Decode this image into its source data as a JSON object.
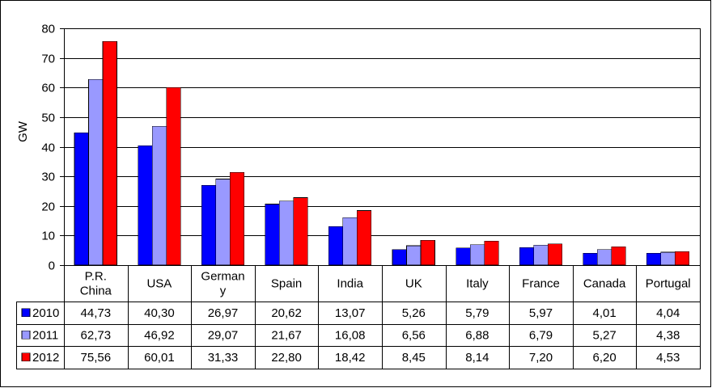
{
  "chart_data": {
    "type": "bar",
    "ylabel": "GW",
    "ylim": [
      0,
      80
    ],
    "yticks": [
      0,
      10,
      20,
      30,
      40,
      50,
      60,
      70,
      80
    ],
    "grid": true,
    "legend": "data-table",
    "categories": [
      "P.R. China",
      "USA",
      "Germany",
      "Spain",
      "India",
      "UK",
      "Italy",
      "France",
      "Canada",
      "Portugal"
    ],
    "category_labels": [
      [
        "P.R.",
        "China"
      ],
      [
        "USA"
      ],
      [
        "German",
        "y"
      ],
      [
        "Spain"
      ],
      [
        "India"
      ],
      [
        "UK"
      ],
      [
        "Italy"
      ],
      [
        "France"
      ],
      [
        "Canada"
      ],
      [
        "Portugal"
      ]
    ],
    "series": [
      {
        "name": "2010",
        "color": "#0000ff",
        "values": [
          44.73,
          40.3,
          26.97,
          20.62,
          13.07,
          5.26,
          5.79,
          5.97,
          4.01,
          4.04
        ],
        "labels": [
          "44,73",
          "40,30",
          "26,97",
          "20,62",
          "13,07",
          "5,26",
          "5,79",
          "5,97",
          "4,01",
          "4,04"
        ]
      },
      {
        "name": "2011",
        "color": "#9999ff",
        "values": [
          62.73,
          46.92,
          29.07,
          21.67,
          16.08,
          6.56,
          6.88,
          6.79,
          5.27,
          4.38
        ],
        "labels": [
          "62,73",
          "46,92",
          "29,07",
          "21,67",
          "16,08",
          "6,56",
          "6,88",
          "6,79",
          "5,27",
          "4,38"
        ]
      },
      {
        "name": "2012",
        "color": "#ff0000",
        "values": [
          75.56,
          60.01,
          31.33,
          22.8,
          18.42,
          8.45,
          8.14,
          7.2,
          6.2,
          4.53
        ],
        "labels": [
          "75,56",
          "60,01",
          "31,33",
          "22,80",
          "18,42",
          "8,45",
          "8,14",
          "7,20",
          "6,20",
          "4,53"
        ]
      }
    ]
  }
}
